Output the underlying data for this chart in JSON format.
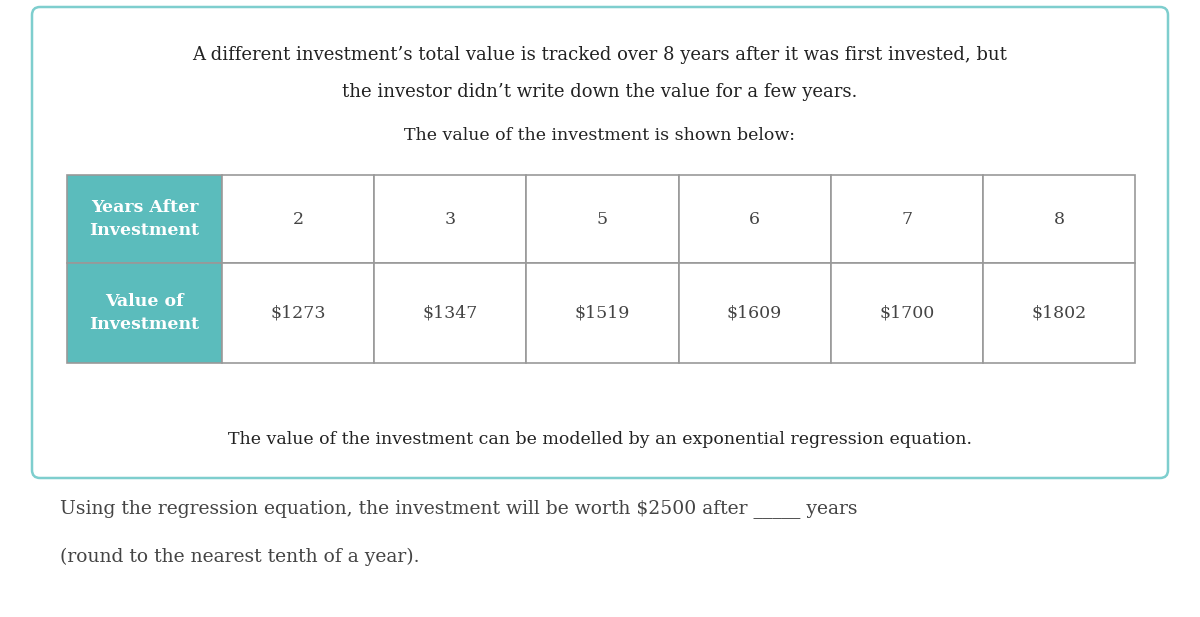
{
  "title_line1": "A different investment’s total value is tracked over 8 years after it was first invested, but",
  "title_line2": "the investor didn’t write down the value for a few years.",
  "subtitle": "The value of the investment is shown below:",
  "row1_header": "Years After\nInvestment",
  "row2_header": "Value of\nInvestment",
  "col_values": [
    "2",
    "3",
    "5",
    "6",
    "7",
    "8"
  ],
  "row2_values": [
    "$1273",
    "$1347",
    "$1519",
    "$1609",
    "$1700",
    "$1802"
  ],
  "footer_text": "The value of the investment can be modelled by an exponential regression equation.",
  "bottom_line1": "Using the regression equation, the investment will be worth $2500 after _____ years",
  "bottom_line2": "(round to the nearest tenth of a year).",
  "box_border": "#7ecece",
  "header_cell_bg": "#5bbcbc",
  "header_cell_text": "#ffffff",
  "data_cell_bg": "#ffffff",
  "data_cell_text": "#444444",
  "table_border_color": "#999999",
  "page_bg": "#ffffff",
  "font_size_title": 13.0,
  "font_size_subtitle": 12.5,
  "font_size_table": 12.5,
  "font_size_footer": 12.5,
  "font_size_bottom": 13.5,
  "fig_width": 12.0,
  "fig_height": 6.17,
  "dpi": 100
}
